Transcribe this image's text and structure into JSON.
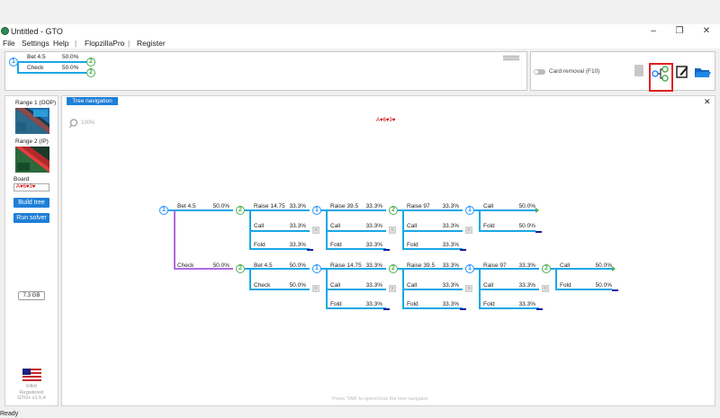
{
  "window": {
    "title": "Untitled - GTO",
    "min": "–",
    "max": "❐",
    "close": "✕"
  },
  "menu": [
    "File",
    "Settings",
    "Help",
    "|",
    "FlopzillaPro",
    "|",
    "Register"
  ],
  "top_tree": {
    "root": "1",
    "branches": [
      {
        "label": "Bet 4.5",
        "pct": "50.0%",
        "node": "2"
      },
      {
        "label": "Check",
        "pct": "50.0%",
        "node": "2"
      }
    ]
  },
  "card_removal": {
    "label": "Card removal (F10)"
  },
  "left": {
    "range1": "Range 1 (OOP)",
    "range2": "Range 2 (IP)",
    "board_label": "Board",
    "board_value": "A♥6♥3♥",
    "build_tree": "Build tree",
    "run_solver": "Run solver",
    "memory": "7.3 GB",
    "version": "64bit\nRegistered\nGTO+ v1.5.4"
  },
  "tree": {
    "tab": "Tree navigation",
    "zoom": "100%",
    "board": "A♥6♥3♥",
    "close": "✕",
    "footer": "Press 'TAB' to open/close the tree navigator",
    "row1": {
      "root": {
        "label": "Bet 4.5",
        "pct": "50.0%"
      },
      "col1": [
        {
          "label": "Raise 14.75",
          "pct": "33.3%"
        },
        {
          "label": "Call",
          "pct": "33.3%"
        },
        {
          "label": "Fold",
          "pct": "33.3%"
        }
      ],
      "col2": [
        {
          "label": "Raise 39.5",
          "pct": "33.3%"
        },
        {
          "label": "Call",
          "pct": "33.3%"
        },
        {
          "label": "Fold",
          "pct": "33.3%"
        }
      ],
      "col3": [
        {
          "label": "Raise 97",
          "pct": "33.3%"
        },
        {
          "label": "Call",
          "pct": "33.3%"
        },
        {
          "label": "Fold",
          "pct": "33.3%"
        }
      ],
      "col4": [
        {
          "label": "Call",
          "pct": "50.0%"
        },
        {
          "label": "Fold",
          "pct": "50.0%"
        }
      ]
    },
    "row2": {
      "root": {
        "label": "Check",
        "pct": "50.0%"
      },
      "col1": [
        {
          "label": "Bet 4.5",
          "pct": "50.0%"
        },
        {
          "label": "Check",
          "pct": "50.0%"
        }
      ],
      "col2": [
        {
          "label": "Raise 14.75",
          "pct": "33.3%"
        },
        {
          "label": "Call",
          "pct": "33.3%"
        },
        {
          "label": "Fold",
          "pct": "33.3%"
        }
      ],
      "col3": [
        {
          "label": "Raise 39.5",
          "pct": "33.3%"
        },
        {
          "label": "Call",
          "pct": "33.3%"
        },
        {
          "label": "Fold",
          "pct": "33.3%"
        }
      ],
      "col4": [
        {
          "label": "Raise 97",
          "pct": "33.3%"
        },
        {
          "label": "Call",
          "pct": "33.3%"
        },
        {
          "label": "Fold",
          "pct": "33.3%"
        }
      ],
      "col5": [
        {
          "label": "Call",
          "pct": "50.0%"
        },
        {
          "label": "Fold",
          "pct": "50.0%"
        }
      ]
    }
  },
  "status": "Ready",
  "colors": {
    "accent": "#1e7fd8",
    "ip_node": "#4caf50",
    "oop_node": "#1e90ff",
    "check_line": "#b06be0",
    "highlight": "#e02020"
  }
}
